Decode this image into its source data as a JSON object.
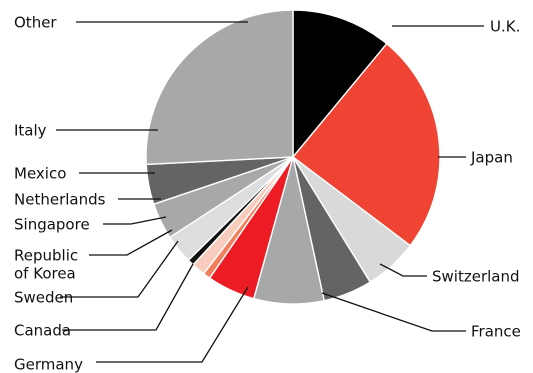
{
  "chart_data": {
    "type": "pie",
    "title": "",
    "start_angle_deg": 0,
    "direction": "clockwise",
    "slices": [
      {
        "label": "U.K.",
        "value": 11.0,
        "color": "#000000"
      },
      {
        "label": "Japan",
        "value": 24.3,
        "color": "#ef4433"
      },
      {
        "label": "Switzerland",
        "value": 5.9,
        "color": "#d9d9da"
      },
      {
        "label": "France",
        "value": 5.4,
        "color": "#636466"
      },
      {
        "label": "Germany",
        "value": 7.7,
        "color": "#a7a8aa"
      },
      {
        "label": "Canada",
        "value": 5.3,
        "color": "#ed1c24"
      },
      {
        "label": "Sweden",
        "value": 0.8,
        "color": "#f37e5b"
      },
      {
        "label": "Republic of Korea",
        "value": 1.5,
        "color": "#f9cdbd"
      },
      {
        "label": "Singapore",
        "value": 0.7,
        "color": "#111111"
      },
      {
        "label": "Netherlands",
        "value": 3.2,
        "color": "#dcdddf"
      },
      {
        "label": "Mexico",
        "value": 4.0,
        "color": "#a7a8aa"
      },
      {
        "label": "Italy",
        "value": 4.4,
        "color": "#636466"
      },
      {
        "label": "Other",
        "value": 25.8,
        "color": "#a7a8aa"
      }
    ]
  }
}
